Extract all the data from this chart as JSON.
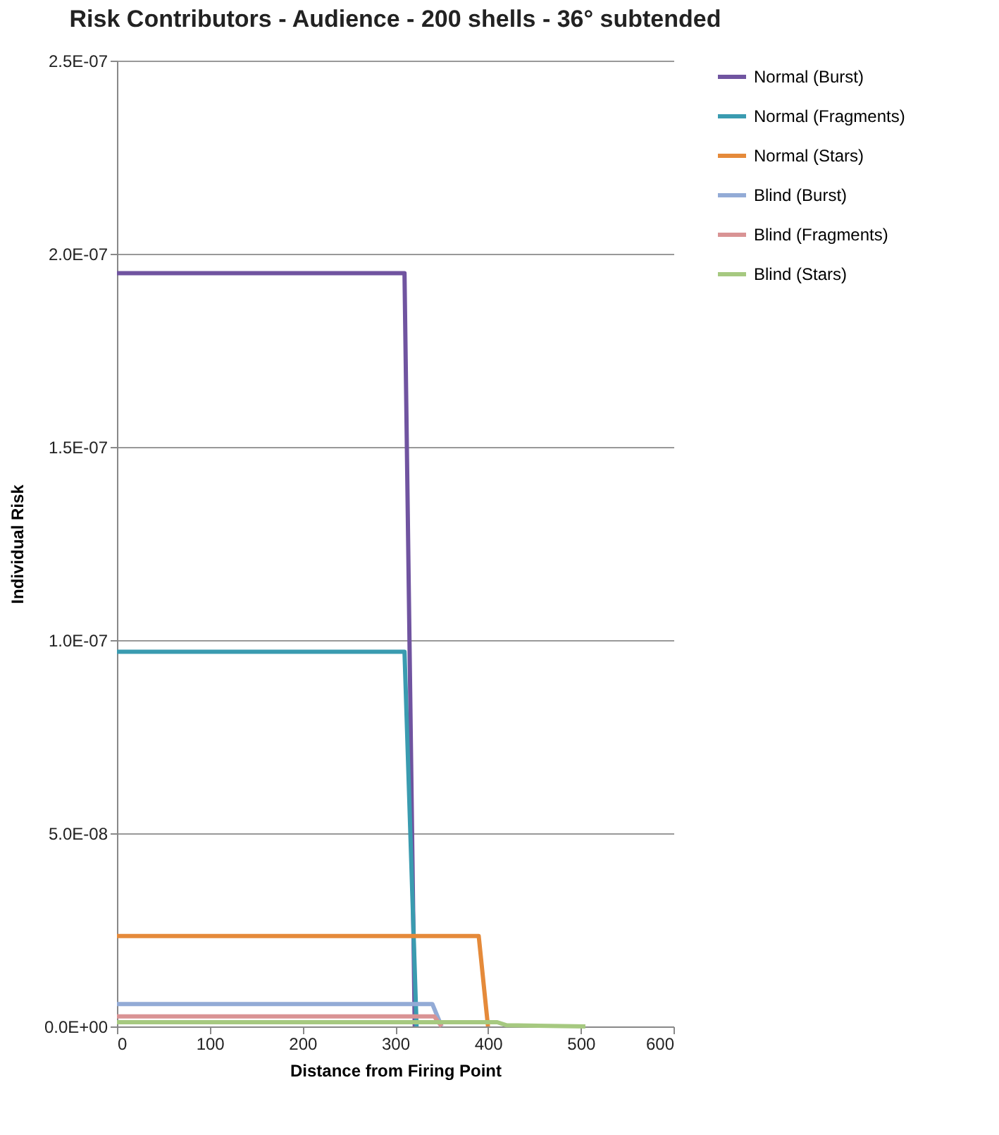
{
  "chart_data": {
    "type": "line",
    "title": "Risk Contributors - Audience - 200 shells - 36° subtended",
    "xlabel": "Distance from Firing Point",
    "ylabel": "Individual Risk",
    "xlim": [
      0,
      600
    ],
    "xticks": [
      0,
      100,
      200,
      300,
      400,
      500,
      600
    ],
    "ylim": [
      0,
      2.5e-07
    ],
    "yticks": [
      {
        "value": 0,
        "label": "0.0E+00"
      },
      {
        "value": 5e-08,
        "label": "5.0E-08"
      },
      {
        "value": 1e-07,
        "label": "1.0E-07"
      },
      {
        "value": 1.5e-07,
        "label": "1.5E-07"
      },
      {
        "value": 2e-07,
        "label": "2.0E-07"
      },
      {
        "value": 2.5e-07,
        "label": "2.5E-07"
      }
    ],
    "grid": "y",
    "legend": "right",
    "series": [
      {
        "name": "Normal (Burst)",
        "color": "#7054a0",
        "x": [
          0,
          310,
          321
        ],
        "values": [
          1.95e-07,
          1.95e-07,
          0
        ]
      },
      {
        "name": "Normal (Fragments)",
        "color": "#3a9bb0",
        "x": [
          0,
          310,
          323
        ],
        "values": [
          9.7e-08,
          9.7e-08,
          0
        ]
      },
      {
        "name": "Normal (Stars)",
        "color": "#e58a3a",
        "x": [
          0,
          390,
          400
        ],
        "values": [
          2.34e-08,
          2.34e-08,
          0
        ]
      },
      {
        "name": "Blind (Burst)",
        "color": "#93abd6",
        "x": [
          0,
          340,
          350
        ],
        "values": [
          5.8e-09,
          5.8e-09,
          0
        ]
      },
      {
        "name": "Blind (Fragments)",
        "color": "#d99394",
        "x": [
          0,
          342,
          350
        ],
        "values": [
          2.6e-09,
          2.6e-09,
          0
        ]
      },
      {
        "name": "Blind (Stars)",
        "color": "#a6c980",
        "x": [
          0,
          410,
          420,
          505
        ],
        "values": [
          1.1e-09,
          1.1e-09,
          3e-10,
          0
        ]
      }
    ]
  }
}
